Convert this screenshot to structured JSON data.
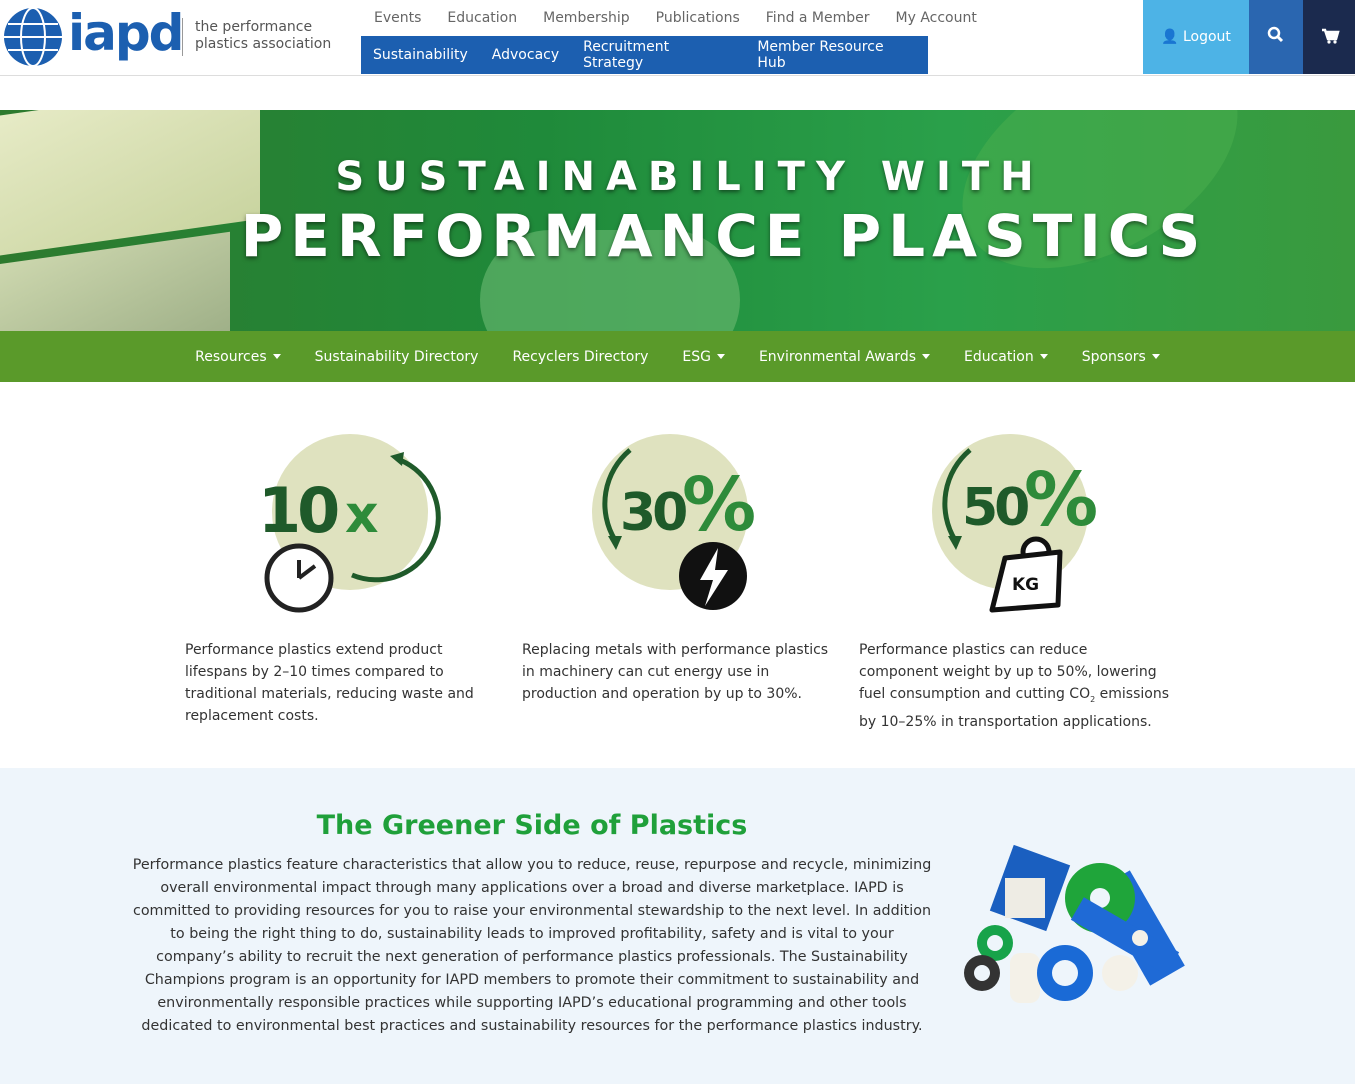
{
  "header": {
    "logo": "iapd",
    "tagline_1": "the performance",
    "tagline_2": "plastics association",
    "top_nav": [
      "Events",
      "Education",
      "Membership",
      "Publications",
      "Find a Member",
      "My Account"
    ],
    "main_nav": [
      "Sustainability",
      "Advocacy",
      "Recruitment Strategy",
      "Member Resource Hub"
    ],
    "logout": "Logout"
  },
  "hero": {
    "line_1": "SUSTAINABILITY WITH",
    "line_2": "PERFORMANCE PLASTICS"
  },
  "sub_nav": [
    "Resources",
    "Sustainability Directory",
    "Recyclers Directory",
    "ESG",
    "Environmental Awards",
    "Education",
    "Sponsors"
  ],
  "stats": [
    {
      "number": "10",
      "unit": "x",
      "description": "Performance plastics extend product lifespans by 2–10 times compared to traditional materials, reducing waste and replacement costs."
    },
    {
      "number": "30",
      "unit": "%",
      "description": "Replacing metals with performance plastics in machinery can cut energy use in production and operation by up to 30%."
    },
    {
      "number": "50",
      "unit": "%",
      "badge": "KG",
      "description": "Performance plastics can reduce component weight by up to 50%, lowering fuel consumption and cutting CO",
      "subscript": "2",
      "description_end": " emissions by 10–25% in transportation applications."
    }
  ],
  "greener": {
    "title": "The Greener Side of Plastics",
    "body": "Performance plastics feature characteristics that allow you to reduce, reuse, repurpose and recycle, minimizing overall environmental impact through many applications over a broad and diverse marketplace. IAPD is committed to providing resources for you to raise your environmental stewardship to the next level. In addition to being the right thing to do, sustainability leads to improved profitability, safety and is vital to your company’s ability to recruit the next generation of performance plastics professionals. The Sustainability Champions program is an opportunity for IAPD members to promote their commitment to sustainability and environmentally responsible practices while supporting IAPD’s educational programming and other tools dedicated to environmental best practices and sustainability resources for the performance plastics industry."
  }
}
